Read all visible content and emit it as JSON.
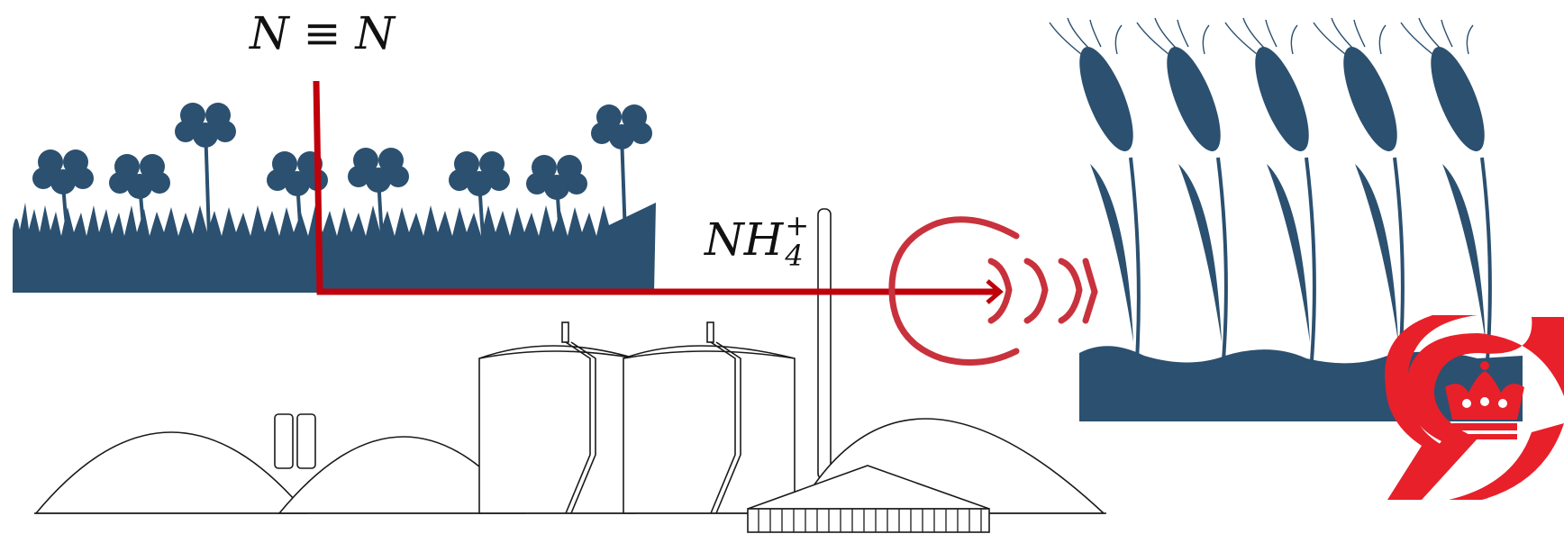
{
  "labels": {
    "dinitrogen": "N ≡ N",
    "ammonium_base": "NH",
    "ammonium_subscript": "4",
    "ammonium_superscript": "+"
  },
  "colors": {
    "plant_blue": "#2b5070",
    "arrow_red": "#c0000b",
    "loop_red": "#c8323c",
    "logo_red": "#e8202a",
    "outline": "#1a1a1a"
  },
  "icons": [
    "clover-field-icon",
    "wheat-field-icon",
    "biogas-plant-icon",
    "emblem-logo-icon"
  ]
}
